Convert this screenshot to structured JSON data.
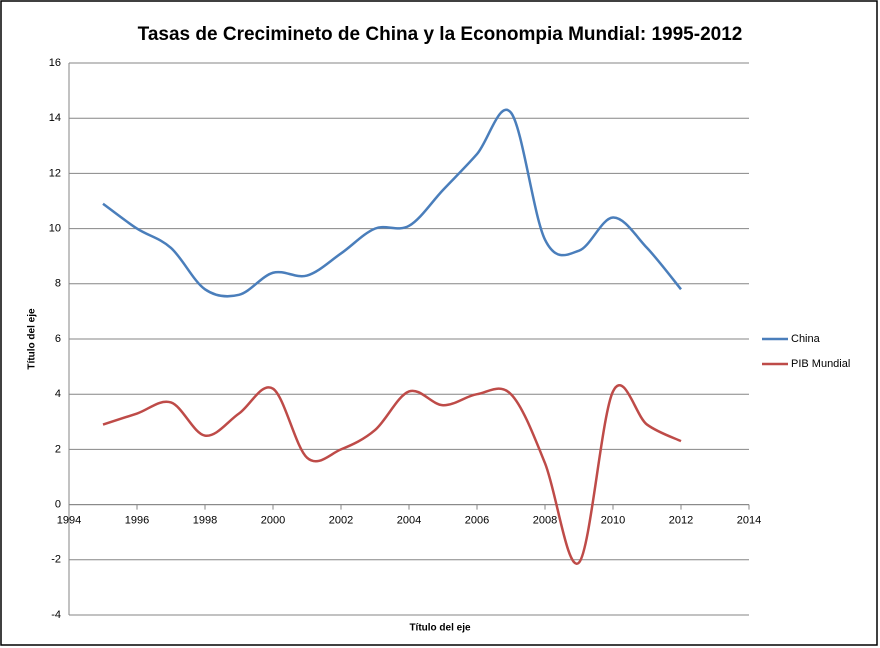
{
  "chart_data": {
    "type": "line",
    "title": "Tasas de Crecimineto de China y la Econompia Mundial: 1995-2012",
    "x_label": "Título del eje",
    "y_label": "Título del eje",
    "x": [
      1995,
      1996,
      1997,
      1998,
      1999,
      2000,
      2001,
      2002,
      2003,
      2004,
      2005,
      2006,
      2007,
      2008,
      2009,
      2010,
      2011,
      2012
    ],
    "series": [
      {
        "name": "China",
        "color": "#4a7ebb",
        "values": [
          10.9,
          10.0,
          9.3,
          7.8,
          7.6,
          8.4,
          8.3,
          9.1,
          10.0,
          10.1,
          11.4,
          12.7,
          14.2,
          9.6,
          9.2,
          10.4,
          9.3,
          7.8
        ]
      },
      {
        "name": "PIB Mundial",
        "color": "#be4b48",
        "values": [
          2.9,
          3.3,
          3.7,
          2.5,
          3.3,
          4.2,
          1.7,
          2.0,
          2.7,
          4.1,
          3.6,
          4.0,
          4.0,
          1.5,
          -2.1,
          4.1,
          2.9,
          2.3
        ]
      }
    ],
    "xlim": [
      1994,
      2014
    ],
    "xticks": [
      1994,
      1996,
      1998,
      2000,
      2002,
      2004,
      2006,
      2008,
      2010,
      2012,
      2014
    ],
    "ylim": [
      -4,
      16
    ],
    "yticks": [
      -4,
      -2,
      0,
      2,
      4,
      6,
      8,
      10,
      12,
      14,
      16
    ],
    "grid": true,
    "smooth": true,
    "legend": "right"
  }
}
